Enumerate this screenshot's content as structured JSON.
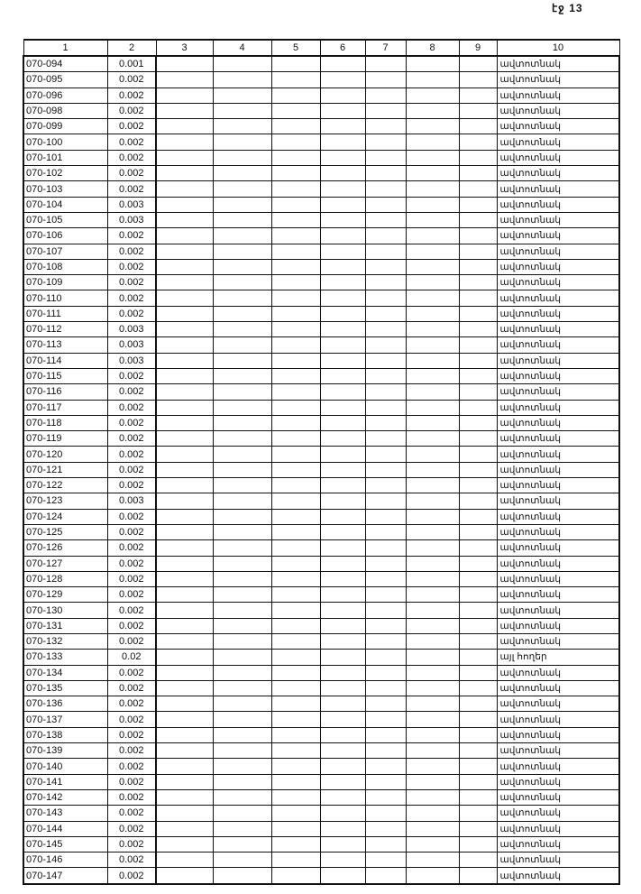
{
  "page_label": "էջ 13",
  "columns": [
    "1",
    "2",
    "3",
    "4",
    "5",
    "6",
    "7",
    "8",
    "9",
    "10"
  ],
  "rows": [
    [
      "070-094",
      "0.001",
      "ավտոտնակ"
    ],
    [
      "070-095",
      "0.002",
      "ավտոտնակ"
    ],
    [
      "070-096",
      "0.002",
      "ավտոտնակ"
    ],
    [
      "070-098",
      "0.002",
      "ավտոտնակ"
    ],
    [
      "070-099",
      "0.002",
      "ավտոտնակ"
    ],
    [
      "070-100",
      "0.002",
      "ավտոտնակ"
    ],
    [
      "070-101",
      "0.002",
      "ավտոտնակ"
    ],
    [
      "070-102",
      "0.002",
      "ավտոտնակ"
    ],
    [
      "070-103",
      "0.002",
      "ավտոտնակ"
    ],
    [
      "070-104",
      "0.003",
      "ավտոտնակ"
    ],
    [
      "070-105",
      "0.003",
      "ավտոտնակ"
    ],
    [
      "070-106",
      "0.002",
      "ավտոտնակ"
    ],
    [
      "070-107",
      "0.002",
      "ավտոտնակ"
    ],
    [
      "070-108",
      "0.002",
      "ավտոտնակ"
    ],
    [
      "070-109",
      "0.002",
      "ավտոտնակ"
    ],
    [
      "070-110",
      "0.002",
      "ավտոտնակ"
    ],
    [
      "070-111",
      "0.002",
      "ավտոտնակ"
    ],
    [
      "070-112",
      "0.003",
      "ավտոտնակ"
    ],
    [
      "070-113",
      "0.003",
      "ավտոտնակ"
    ],
    [
      "070-114",
      "0.003",
      "ավտոտնակ"
    ],
    [
      "070-115",
      "0.002",
      "ավտոտնակ"
    ],
    [
      "070-116",
      "0.002",
      "ավտոտնակ"
    ],
    [
      "070-117",
      "0.002",
      "ավտոտնակ"
    ],
    [
      "070-118",
      "0.002",
      "ավտոտնակ"
    ],
    [
      "070-119",
      "0.002",
      "ավտոտնակ"
    ],
    [
      "070-120",
      "0.002",
      "ավտոտնակ"
    ],
    [
      "070-121",
      "0.002",
      "ավտոտնակ"
    ],
    [
      "070-122",
      "0.002",
      "ավտոտնակ"
    ],
    [
      "070-123",
      "0.003",
      "ավտոտնակ"
    ],
    [
      "070-124",
      "0.002",
      "ավտոտնակ"
    ],
    [
      "070-125",
      "0.002",
      "ավտոտնակ"
    ],
    [
      "070-126",
      "0.002",
      "ավտոտնակ"
    ],
    [
      "070-127",
      "0.002",
      "ավտոտնակ"
    ],
    [
      "070-128",
      "0.002",
      "ավտոտնակ"
    ],
    [
      "070-129",
      "0.002",
      "ավտոտնակ"
    ],
    [
      "070-130",
      "0.002",
      "ավտոտնակ"
    ],
    [
      "070-131",
      "0.002",
      "ավտոտնակ"
    ],
    [
      "070-132",
      "0.002",
      "ավտոտնակ"
    ],
    [
      "070-133",
      "0.02",
      "այլ հողեր"
    ],
    [
      "070-134",
      "0.002",
      "ավտոտնակ"
    ],
    [
      "070-135",
      "0.002",
      "ավտոտնակ"
    ],
    [
      "070-136",
      "0.002",
      "ավտոտնակ"
    ],
    [
      "070-137",
      "0.002",
      "ավտոտնակ"
    ],
    [
      "070-138",
      "0.002",
      "ավտոտնակ"
    ],
    [
      "070-139",
      "0.002",
      "ավտոտնակ"
    ],
    [
      "070-140",
      "0.002",
      "ավտոտնակ"
    ],
    [
      "070-141",
      "0.002",
      "ավտոտնակ"
    ],
    [
      "070-142",
      "0.002",
      "ավտոտնակ"
    ],
    [
      "070-143",
      "0.002",
      "ավտոտնակ"
    ],
    [
      "070-144",
      "0.002",
      "ավտոտնակ"
    ],
    [
      "070-145",
      "0.002",
      "ավտոտնակ"
    ],
    [
      "070-146",
      "0.002",
      "ավտոտնակ"
    ],
    [
      "070-147",
      "0.002",
      "ավտոտնակ"
    ]
  ]
}
